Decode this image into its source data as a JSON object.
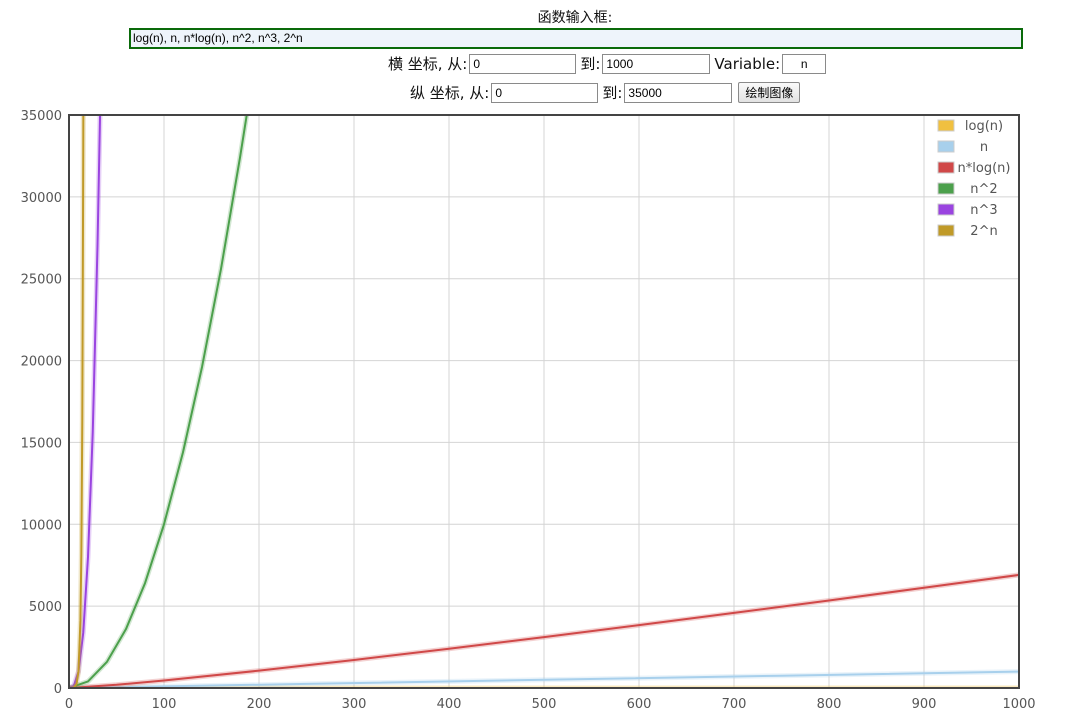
{
  "header": {
    "function_label": "函数输入框:",
    "function_value": "log(n), n, n*log(n), n^2, n^3, 2^n"
  },
  "x_range": {
    "label": "横 坐标, 从:",
    "from": "0",
    "to_label": "到:",
    "to": "1000",
    "variable_label": "Variable:",
    "variable": "n"
  },
  "y_range": {
    "label": "纵 坐标, 从:",
    "from": "0",
    "to_label": "到:",
    "to": "35000",
    "draw_button": "绘制图像"
  },
  "chart_data": {
    "type": "line",
    "title": "",
    "xlabel": "",
    "ylabel": "",
    "xlim": [
      0,
      1000
    ],
    "ylim": [
      0,
      35000
    ],
    "x_ticks": [
      0,
      100,
      200,
      300,
      400,
      500,
      600,
      700,
      800,
      900,
      1000
    ],
    "y_ticks": [
      0,
      5000,
      10000,
      15000,
      20000,
      25000,
      30000,
      35000
    ],
    "grid": true,
    "legend_position": "top-right",
    "series": [
      {
        "name": "log(n)",
        "color": "#f0c040",
        "x": [
          1,
          250,
          500,
          750,
          1000
        ],
        "y": [
          0,
          5.52,
          6.21,
          6.62,
          6.91
        ]
      },
      {
        "name": "n",
        "color": "#a8d0ec",
        "x": [
          0,
          250,
          500,
          750,
          1000
        ],
        "y": [
          0,
          250,
          500,
          750,
          1000
        ]
      },
      {
        "name": "n*log(n)",
        "color": "#d04848",
        "x": [
          1,
          50,
          100,
          200,
          300,
          400,
          500,
          600,
          700,
          800,
          900,
          1000
        ],
        "y": [
          0,
          196,
          461,
          1060,
          1711,
          2397,
          3107,
          3838,
          4586,
          5348,
          6122,
          6908
        ]
      },
      {
        "name": "n^2",
        "color": "#4ca04c",
        "x": [
          0,
          20,
          40,
          60,
          80,
          100,
          120,
          140,
          160,
          180,
          187.1
        ],
        "y": [
          0,
          400,
          1600,
          3600,
          6400,
          10000,
          14400,
          19600,
          25600,
          32400,
          35000
        ]
      },
      {
        "name": "n^3",
        "color": "#9a44e0",
        "x": [
          0,
          5,
          10,
          15,
          20,
          25,
          30,
          32.7
        ],
        "y": [
          0,
          125,
          1000,
          3375,
          8000,
          15625,
          27000,
          35000
        ]
      },
      {
        "name": "2^n",
        "color": "#c09a28",
        "x": [
          0,
          5,
          8,
          10,
          12,
          13,
          14,
          15,
          15.1
        ],
        "y": [
          1,
          32,
          256,
          1024,
          4096,
          8192,
          16384,
          32768,
          35000
        ]
      }
    ]
  }
}
